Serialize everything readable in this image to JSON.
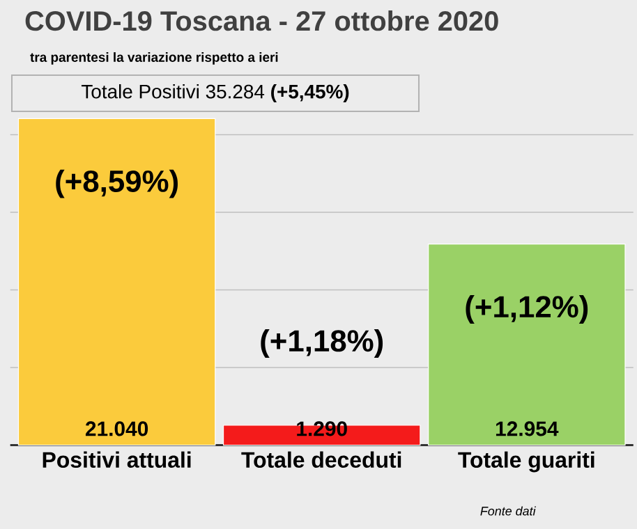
{
  "chart_data": {
    "type": "bar",
    "title": "COVID-19  Toscana - 27 ottobre 2020",
    "subtitle": "tra parentesi la variazione rispetto a ieri",
    "categories": [
      "Positivi attuali",
      "Totale deceduti",
      "Totale guariti"
    ],
    "values": [
      21040,
      1290,
      12954
    ],
    "colors": [
      "#fbcb3c",
      "#f41b1b",
      "#9ad166"
    ],
    "value_labels": [
      "21.040",
      "1.290",
      "12.954"
    ],
    "grid": "y",
    "annotations": [
      "Totale Positivi    35.284 **(+5,45%)**",
      "*Fonte dati*",
      "(+8,59%)",
      "(+1,18%)",
      "(+1,12%)"
    ]
  }
}
